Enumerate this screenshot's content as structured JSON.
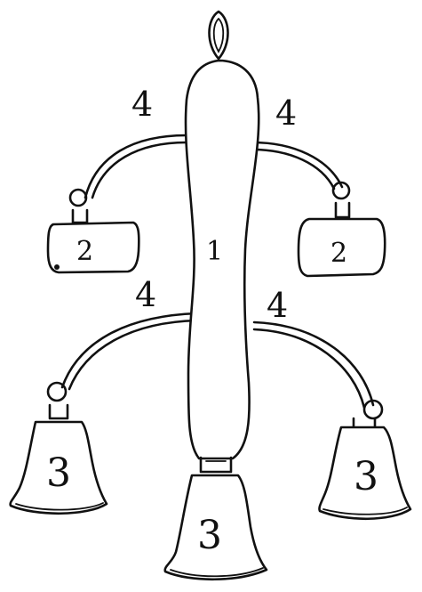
{
  "labels": {
    "rod": "1",
    "weight_left": "2",
    "weight_right": "2",
    "bell_left": "3",
    "bell_center": "3",
    "bell_right": "3",
    "wire_upper_left": "4",
    "wire_upper_right": "4",
    "wire_lower_left": "4",
    "wire_lower_right": "4"
  }
}
